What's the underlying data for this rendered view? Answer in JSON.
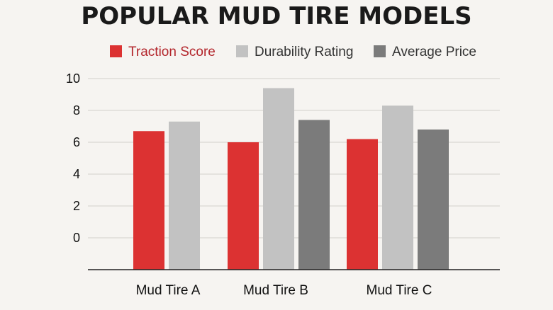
{
  "chart_data": {
    "type": "bar",
    "title": "POPULAR MUD TIRE MODELS",
    "categories": [
      "Mud Tire A",
      "Mud Tire B",
      "Mud Tire C"
    ],
    "series": [
      {
        "name": "Traction Score",
        "color": "#dc3232",
        "values": [
          6.7,
          6.0,
          6.2
        ]
      },
      {
        "name": "Durability Rating",
        "color": "#c2c2c2",
        "values": [
          7.3,
          9.4,
          8.3
        ]
      },
      {
        "name": "Average Price",
        "color": "#7b7b7b",
        "values": [
          null,
          7.4,
          6.8
        ]
      }
    ],
    "y_ticks": [
      "10",
      "8",
      "6",
      "4",
      "2",
      "0"
    ],
    "ylim": [
      -2,
      10
    ],
    "grid": true,
    "legend_position": "top",
    "legend_text_colors": [
      "#b3262c",
      "#333333",
      "#333333"
    ]
  }
}
